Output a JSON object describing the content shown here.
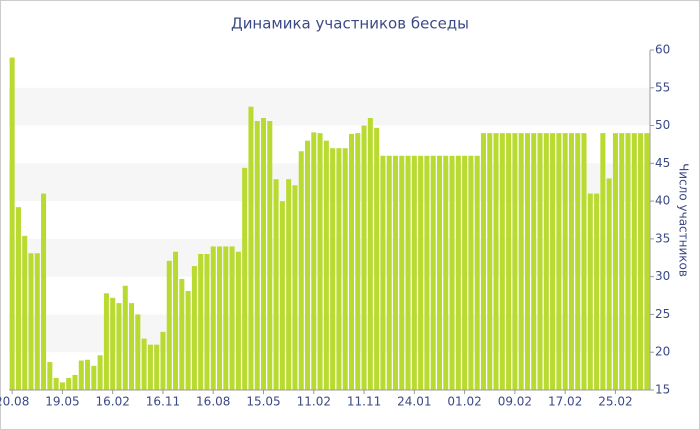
{
  "chart_data": {
    "type": "bar",
    "title": "Динамика участников беседы",
    "y_axis_label": "Число участников",
    "categories": [
      "20.08",
      null,
      null,
      null,
      null,
      null,
      null,
      null,
      "19.05",
      null,
      null,
      null,
      null,
      null,
      null,
      null,
      "16.02",
      null,
      null,
      null,
      null,
      null,
      null,
      null,
      "16.11",
      null,
      null,
      null,
      null,
      null,
      null,
      null,
      "16.08",
      null,
      null,
      null,
      null,
      null,
      null,
      null,
      "15.05",
      null,
      null,
      null,
      null,
      null,
      null,
      null,
      "11.02",
      null,
      null,
      null,
      null,
      null,
      null,
      null,
      "11.11",
      null,
      null,
      null,
      null,
      null,
      null,
      null,
      "24.01",
      null,
      null,
      null,
      null,
      null,
      null,
      null,
      "01.02",
      null,
      null,
      null,
      null,
      null,
      null,
      null,
      "09.02",
      null,
      null,
      null,
      null,
      null,
      null,
      null,
      "17.02",
      null,
      null,
      null,
      null,
      null,
      null,
      null,
      "25.02",
      null,
      null,
      null,
      null,
      null
    ],
    "values": [
      59,
      39.2,
      35.4,
      33.1,
      33.1,
      41,
      18.7,
      16.6,
      16,
      16.6,
      17,
      18.9,
      19,
      18.2,
      19.6,
      27.8,
      27.2,
      26.5,
      28.8,
      26.5,
      25,
      21.8,
      21,
      21,
      22.7,
      32.1,
      33.3,
      29.7,
      28.1,
      31.4,
      33,
      33,
      34,
      34,
      34,
      34,
      33.3,
      44.4,
      52.5,
      50.6,
      51,
      50.6,
      42.9,
      40,
      42.9,
      42.1,
      46.6,
      48,
      49.1,
      49,
      48,
      47,
      47,
      47,
      48.9,
      49,
      50,
      51,
      49.7,
      46,
      46,
      46,
      46,
      46,
      46,
      46,
      46,
      46,
      46,
      46,
      46,
      46,
      46,
      46,
      46,
      49,
      49,
      49,
      49,
      49,
      49,
      49,
      49,
      49,
      49,
      49,
      49,
      49,
      49,
      49,
      49,
      49,
      41,
      41,
      49,
      43,
      49,
      49,
      49,
      49,
      49,
      49
    ],
    "color": "#b9da30",
    "ylim": [
      15,
      60
    ],
    "yticks": [
      15,
      20,
      25,
      30,
      35,
      40,
      45,
      50,
      55,
      60
    ],
    "grid": "bands",
    "y_axis_side": "right"
  }
}
